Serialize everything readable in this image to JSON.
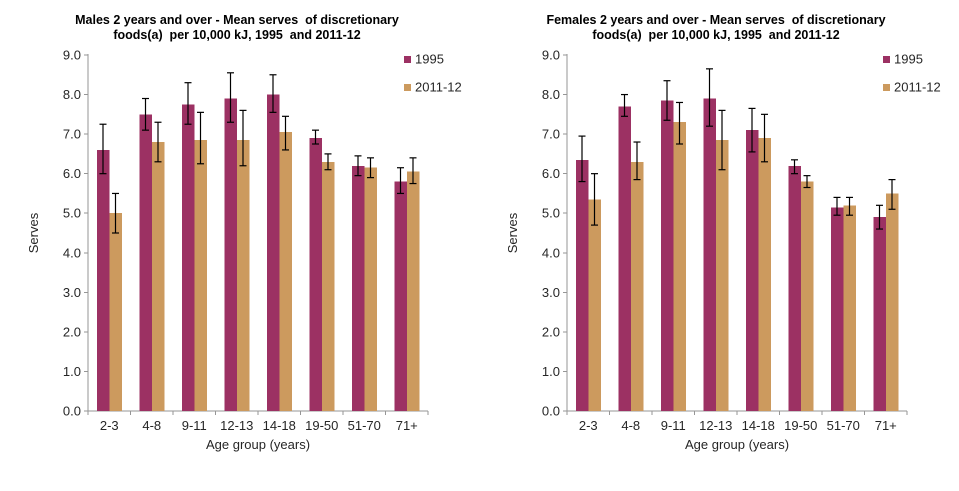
{
  "page": {
    "background": "#ffffff",
    "description_left_chart": "Males mean serves of discretionary foods per 10,000 kJ",
    "description_right_chart": "Females mean serves of discretionary foods per 10,000 kJ"
  },
  "colors": {
    "series_1995": "#9C3163",
    "series_2011_12": "#CC9A5E",
    "axis": "#969696",
    "error_bar": "#000000",
    "title_text": "#000000",
    "tick_text": "#262626"
  },
  "chart_data": [
    {
      "type": "bar",
      "title": "Males 2 years and over - Mean serves of discretionary foods(a) per 10,000 kJ, 1995 and 2011-12",
      "title_lines": [
        "Males 2 years and over - Mean serves  of discretionary",
        "foods(a)  per 10,000 kJ, 1995  and 2011-12"
      ],
      "xlabel": "Age group (years)",
      "ylabel": "Serves",
      "ylim": [
        0.0,
        9.0
      ],
      "ytick_step": 1.0,
      "grid": false,
      "legend_position": "top-right",
      "error_bars": true,
      "categories": [
        "2-3",
        "4-8",
        "9-11",
        "12-13",
        "14-18",
        "19-50",
        "51-70",
        "71+"
      ],
      "series": [
        {
          "name": "1995",
          "color": "#9C3163",
          "values": [
            6.6,
            7.5,
            7.75,
            7.9,
            8.0,
            6.9,
            6.2,
            5.8
          ],
          "err_low": [
            6.0,
            7.1,
            7.25,
            7.3,
            7.55,
            6.75,
            5.95,
            5.5
          ],
          "err_high": [
            7.25,
            7.9,
            8.3,
            8.55,
            8.5,
            7.1,
            6.45,
            6.15
          ]
        },
        {
          "name": "2011-12",
          "color": "#CC9A5E",
          "values": [
            5.0,
            6.8,
            6.85,
            6.85,
            7.05,
            6.3,
            6.15,
            6.05
          ],
          "err_low": [
            4.5,
            6.3,
            6.25,
            6.2,
            6.6,
            6.1,
            5.9,
            5.75
          ],
          "err_high": [
            5.5,
            7.3,
            7.55,
            7.6,
            7.45,
            6.5,
            6.4,
            6.4
          ]
        }
      ]
    },
    {
      "type": "bar",
      "title": "Females 2 years and over - Mean serves of discretionary foods(a) per 10,000 kJ, 1995 and 2011-12",
      "title_lines": [
        "Females 2 years and over - Mean serves  of discretionary",
        "foods(a)  per 10,000 kJ, 1995  and 2011-12"
      ],
      "xlabel": "Age group (years)",
      "ylabel": "Serves",
      "ylim": [
        0.0,
        9.0
      ],
      "ytick_step": 1.0,
      "grid": false,
      "legend_position": "top-right",
      "error_bars": true,
      "categories": [
        "2-3",
        "4-8",
        "9-11",
        "12-13",
        "14-18",
        "19-50",
        "51-70",
        "71+"
      ],
      "series": [
        {
          "name": "1995",
          "color": "#9C3163",
          "values": [
            6.35,
            7.7,
            7.85,
            7.9,
            7.1,
            6.2,
            5.15,
            4.9
          ],
          "err_low": [
            5.8,
            7.45,
            7.35,
            7.2,
            6.55,
            6.0,
            4.95,
            4.6
          ],
          "err_high": [
            6.95,
            8.0,
            8.35,
            8.65,
            7.65,
            6.35,
            5.4,
            5.2
          ]
        },
        {
          "name": "2011-12",
          "color": "#CC9A5E",
          "values": [
            5.35,
            6.3,
            7.3,
            6.85,
            6.9,
            5.8,
            5.2,
            5.5
          ],
          "err_low": [
            4.7,
            5.85,
            6.75,
            6.1,
            6.3,
            5.65,
            4.95,
            5.1
          ],
          "err_high": [
            6.0,
            6.8,
            7.8,
            7.6,
            7.5,
            5.95,
            5.4,
            5.85
          ]
        }
      ]
    }
  ]
}
